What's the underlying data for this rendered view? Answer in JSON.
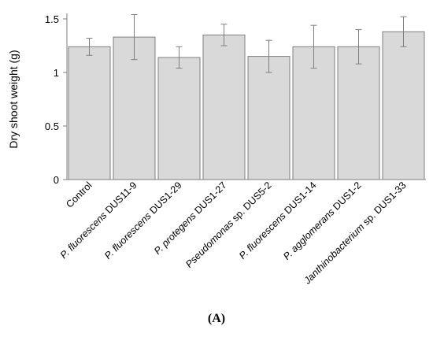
{
  "chart_data": {
    "type": "bar",
    "ylabel": "Dry shoot weight (g)",
    "xlabel": "",
    "title": "",
    "ylim": [
      0,
      1.5
    ],
    "yticks": [
      0,
      0.5,
      1,
      1.5
    ],
    "ytick_labels": [
      "0",
      "0.5",
      "1",
      "1.5"
    ],
    "grid": false,
    "legend": "none",
    "bar_color": "#d9d9d9",
    "bar_edge_color": "#7f7f7f",
    "categories": [
      {
        "parts": [
          {
            "text": "Control",
            "italic": false
          }
        ]
      },
      {
        "parts": [
          {
            "text": "P. fluorescens",
            "italic": true
          },
          {
            "text": " DUS11-9",
            "italic": false
          }
        ]
      },
      {
        "parts": [
          {
            "text": "P. fluorescens",
            "italic": true
          },
          {
            "text": " DUS1-29",
            "italic": false
          }
        ]
      },
      {
        "parts": [
          {
            "text": "P. protegens",
            "italic": true
          },
          {
            "text": " DUS1-27",
            "italic": false
          }
        ]
      },
      {
        "parts": [
          {
            "text": "Pseudomonas",
            "italic": true
          },
          {
            "text": " sp. DUS5-2",
            "italic": false
          }
        ]
      },
      {
        "parts": [
          {
            "text": "P. fluorescens",
            "italic": true
          },
          {
            "text": " DUS1-14",
            "italic": false
          }
        ]
      },
      {
        "parts": [
          {
            "text": "P. agglomerans",
            "italic": true
          },
          {
            "text": " DUS1-2",
            "italic": false
          }
        ]
      },
      {
        "parts": [
          {
            "text": "Janthinobacterium",
            "italic": true
          },
          {
            "text": " sp. DUS1-33",
            "italic": false
          }
        ]
      }
    ],
    "values": [
      1.24,
      1.33,
      1.14,
      1.35,
      1.15,
      1.24,
      1.24,
      1.38
    ],
    "error_low": [
      1.16,
      1.12,
      1.04,
      1.25,
      1.0,
      1.04,
      1.08,
      1.24
    ],
    "error_high": [
      1.32,
      1.54,
      1.24,
      1.45,
      1.3,
      1.44,
      1.4,
      1.52
    ]
  },
  "panel_label": "(A)"
}
